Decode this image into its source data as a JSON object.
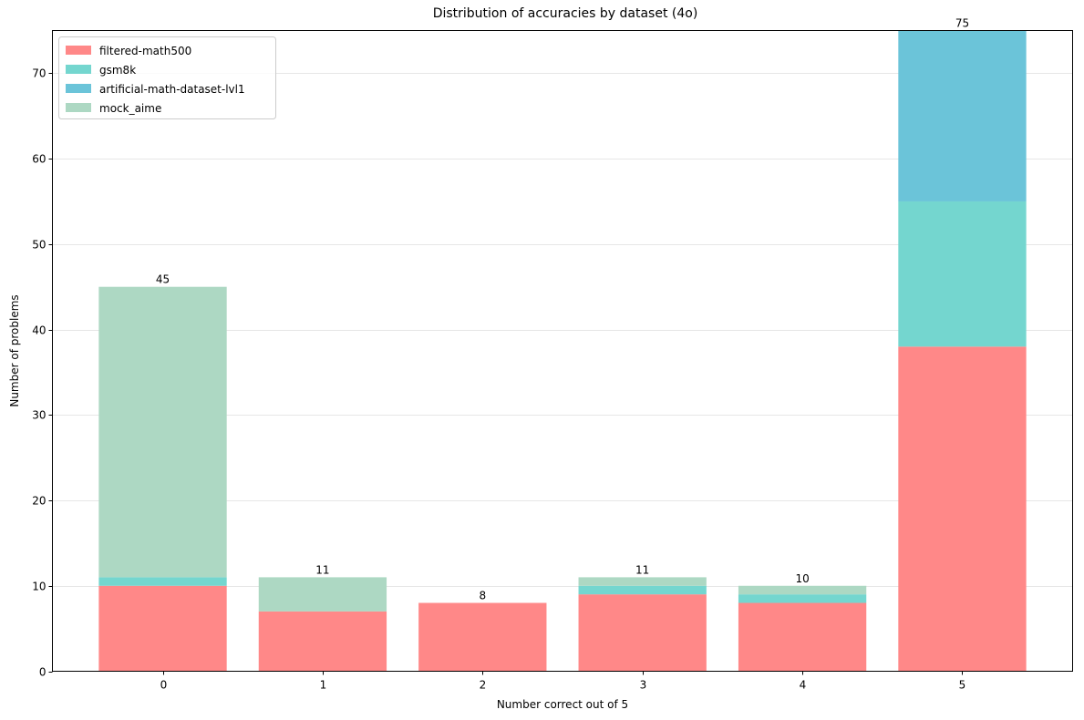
{
  "chart_data": {
    "type": "bar",
    "stacked": true,
    "title": "Distribution of accuracies by dataset (4o)",
    "xlabel": "Number correct out of 5",
    "ylabel": "Number of problems",
    "categories": [
      "0",
      "1",
      "2",
      "3",
      "4",
      "5"
    ],
    "ylim": [
      0,
      75
    ],
    "yticks": [
      0,
      10,
      20,
      30,
      40,
      50,
      60,
      70
    ],
    "grid": "y",
    "legend_position": "top-left",
    "series": [
      {
        "name": "filtered-math500",
        "color": "#ff8888",
        "values": [
          10,
          7,
          8,
          9,
          8,
          38
        ]
      },
      {
        "name": "gsm8k",
        "color": "#74d6cf",
        "values": [
          1,
          0,
          0,
          1,
          1,
          17
        ]
      },
      {
        "name": "artificial-math-dataset-lvl1",
        "color": "#6bc4d9",
        "values": [
          0,
          0,
          0,
          0,
          0,
          20
        ]
      },
      {
        "name": "mock_aime",
        "color": "#add8c3",
        "values": [
          34,
          4,
          0,
          1,
          1,
          0
        ]
      }
    ],
    "totals": [
      45,
      11,
      8,
      11,
      10,
      75
    ]
  }
}
